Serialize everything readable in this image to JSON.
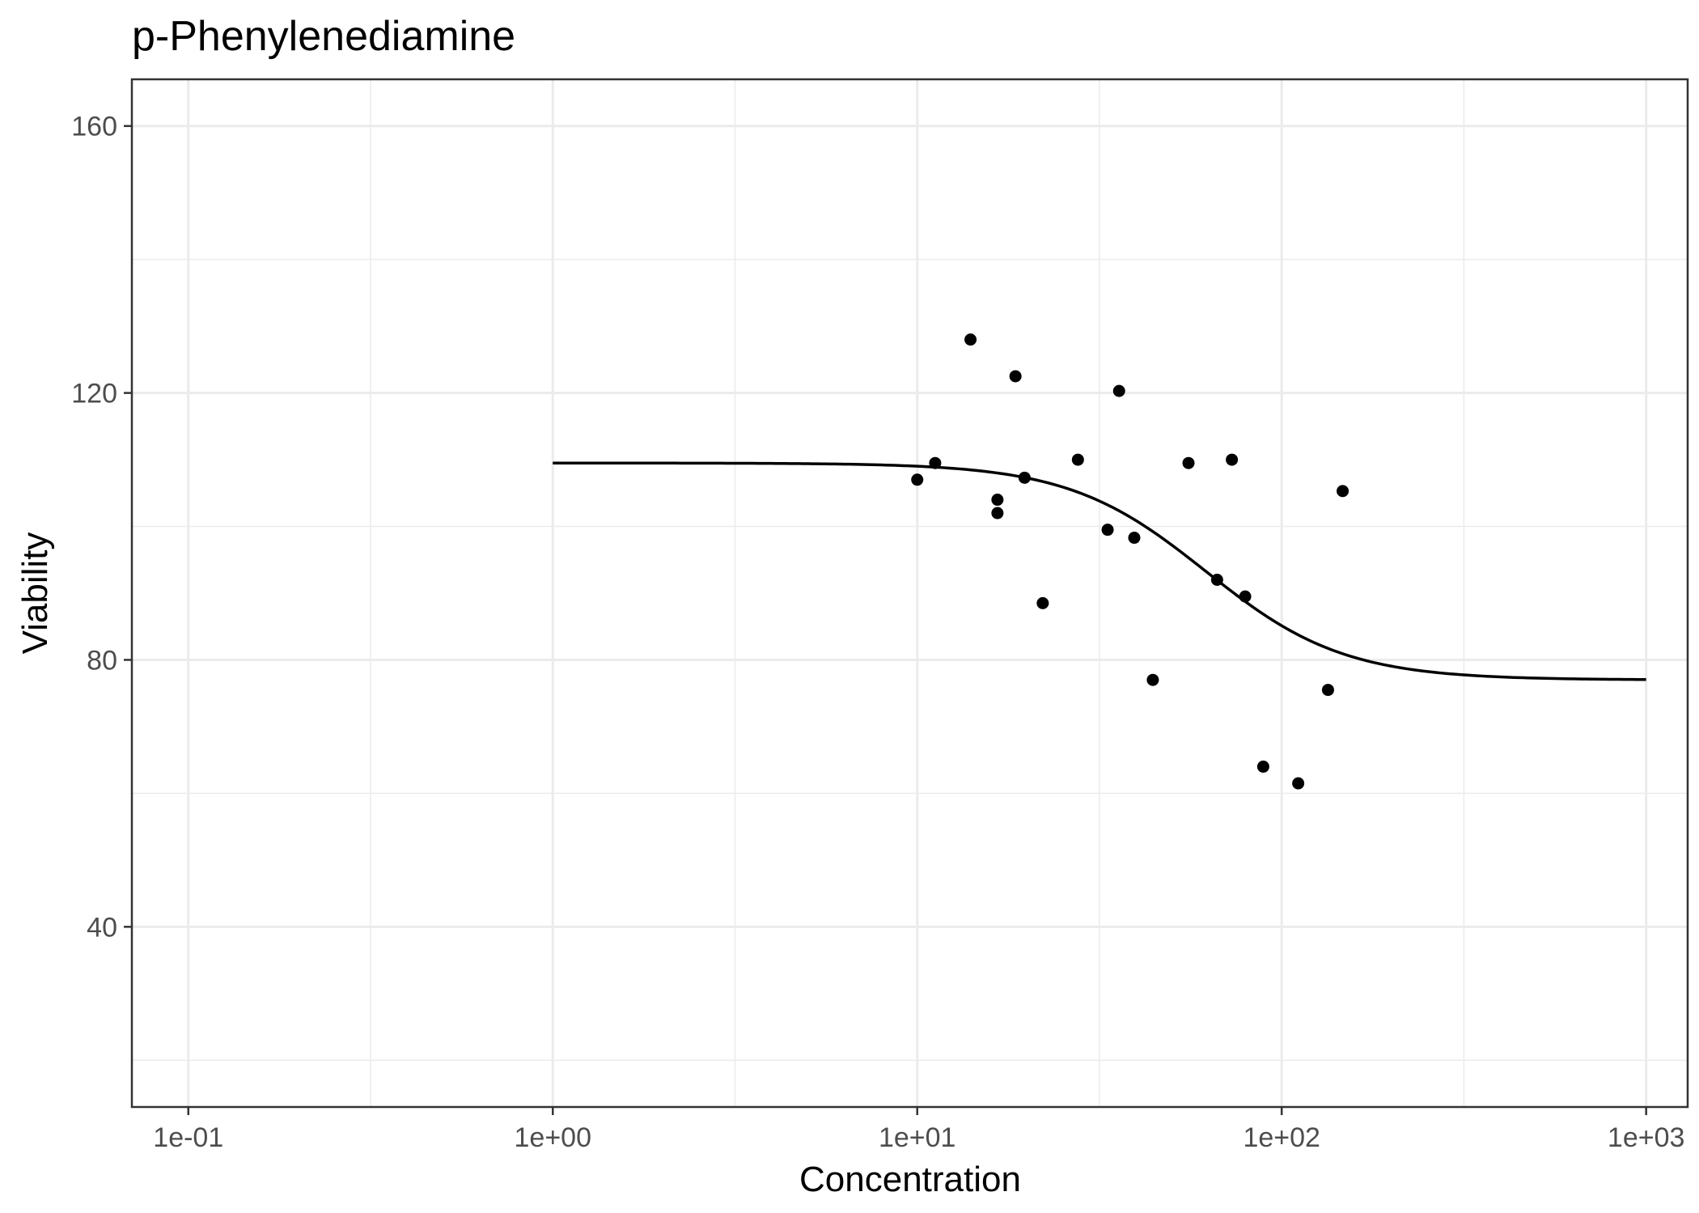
{
  "chart_data": {
    "type": "scatter",
    "title": "p-Phenylenediamine",
    "xlabel": "Concentration",
    "ylabel": "Viability",
    "x_scale": "log10",
    "xlim": [
      0.07,
      1300
    ],
    "ylim": [
      13,
      167
    ],
    "x_ticks": [
      {
        "value": 0.1,
        "label": "1e-01"
      },
      {
        "value": 1,
        "label": "1e+00"
      },
      {
        "value": 10,
        "label": "1e+01"
      },
      {
        "value": 100,
        "label": "1e+02"
      },
      {
        "value": 1000,
        "label": "1e+03"
      }
    ],
    "y_ticks": [
      {
        "value": 40,
        "label": "40"
      },
      {
        "value": 80,
        "label": "80"
      },
      {
        "value": 120,
        "label": "120"
      },
      {
        "value": 160,
        "label": "160"
      }
    ],
    "grid": true,
    "legend": "none",
    "point_color": "#000000",
    "points": [
      {
        "x": 10.0,
        "y": 107.0
      },
      {
        "x": 11.2,
        "y": 109.5
      },
      {
        "x": 14.0,
        "y": 128.0
      },
      {
        "x": 16.6,
        "y": 104.0
      },
      {
        "x": 16.6,
        "y": 102.0
      },
      {
        "x": 18.6,
        "y": 122.5
      },
      {
        "x": 19.7,
        "y": 107.3
      },
      {
        "x": 22.1,
        "y": 88.5
      },
      {
        "x": 27.6,
        "y": 110.0
      },
      {
        "x": 33.3,
        "y": 99.5
      },
      {
        "x": 35.8,
        "y": 120.3
      },
      {
        "x": 39.4,
        "y": 98.3
      },
      {
        "x": 44.3,
        "y": 77.0
      },
      {
        "x": 55.5,
        "y": 109.5
      },
      {
        "x": 66.5,
        "y": 92.0
      },
      {
        "x": 73.0,
        "y": 110.0
      },
      {
        "x": 79.4,
        "y": 89.5
      },
      {
        "x": 89.0,
        "y": 64.0
      },
      {
        "x": 111.0,
        "y": 61.5
      },
      {
        "x": 134.0,
        "y": 75.5
      },
      {
        "x": 147.0,
        "y": 105.3
      }
    ],
    "fit_curve": {
      "model": "4-parameter log-logistic",
      "top": 109.5,
      "bottom": 77.0,
      "ec50": 62,
      "hill": 2.3,
      "x_range": [
        1,
        1000
      ]
    }
  }
}
